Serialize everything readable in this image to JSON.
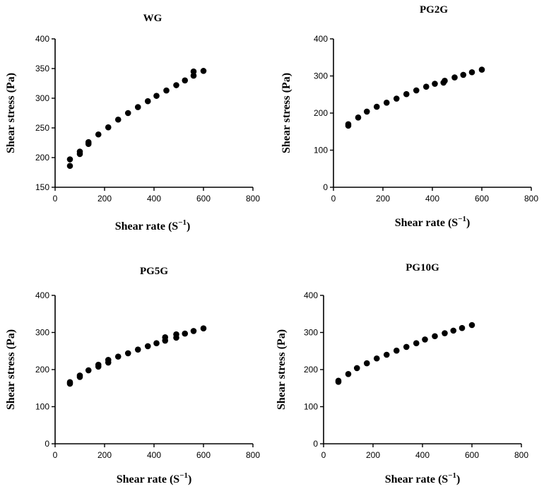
{
  "chart_data": [
    {
      "type": "scatter",
      "title": "WG",
      "xlabel": "Shear rate",
      "xlabel_unit_base": "S",
      "xlabel_unit_exp": "−1",
      "ylabel": "Shear stress (Pa)",
      "xlim": [
        0,
        800
      ],
      "ylim": [
        150,
        400
      ],
      "xticks": [
        0,
        200,
        400,
        600,
        800
      ],
      "yticks": [
        150,
        200,
        250,
        300,
        350,
        400
      ],
      "x": [
        60,
        60,
        100,
        100,
        135,
        135,
        175,
        215,
        255,
        295,
        335,
        375,
        410,
        450,
        490,
        525,
        560,
        560,
        600
      ],
      "y": [
        186,
        197,
        206,
        210,
        223,
        226,
        239,
        251,
        264,
        275,
        285,
        295,
        304,
        313,
        322,
        330,
        338,
        345,
        346
      ]
    },
    {
      "type": "scatter",
      "title": "PG2G",
      "xlabel": "Shear rate",
      "xlabel_unit_base": "S",
      "xlabel_unit_exp": "−1",
      "ylabel": "Shear stress (Pa)",
      "xlim": [
        0,
        800
      ],
      "ylim": [
        0,
        400
      ],
      "xticks": [
        0,
        200,
        400,
        600,
        800
      ],
      "yticks": [
        0,
        100,
        200,
        300,
        400
      ],
      "x": [
        60,
        60,
        100,
        135,
        175,
        215,
        255,
        295,
        335,
        375,
        410,
        445,
        450,
        490,
        525,
        560,
        600
      ],
      "y": [
        166,
        170,
        188,
        204,
        217,
        228,
        239,
        251,
        261,
        271,
        279,
        282,
        287,
        296,
        303,
        310,
        317
      ]
    },
    {
      "type": "scatter",
      "title": "PG5G",
      "xlabel": "Shear rate",
      "xlabel_unit_base": "S",
      "xlabel_unit_exp": "−1",
      "ylabel": "Shear stress (Pa)",
      "xlim": [
        0,
        800
      ],
      "ylim": [
        0,
        400
      ],
      "xticks": [
        0,
        200,
        400,
        600,
        800
      ],
      "yticks": [
        0,
        100,
        200,
        300,
        400
      ],
      "x": [
        60,
        60,
        100,
        100,
        135,
        175,
        175,
        215,
        215,
        255,
        295,
        335,
        375,
        410,
        445,
        445,
        490,
        490,
        525,
        560,
        600
      ],
      "y": [
        162,
        166,
        180,
        184,
        198,
        208,
        213,
        219,
        226,
        235,
        244,
        254,
        263,
        271,
        278,
        287,
        286,
        295,
        297,
        304,
        311
      ]
    },
    {
      "type": "scatter",
      "title": "PG10G",
      "xlabel": "Shear rate",
      "xlabel_unit_base": "S",
      "xlabel_unit_exp": "−1",
      "ylabel": "Shear stress (Pa)",
      "xlim": [
        0,
        800
      ],
      "ylim": [
        0,
        400
      ],
      "xticks": [
        0,
        200,
        400,
        600,
        800
      ],
      "yticks": [
        0,
        100,
        200,
        300,
        400
      ],
      "x": [
        60,
        60,
        100,
        135,
        175,
        215,
        255,
        295,
        335,
        375,
        410,
        450,
        490,
        525,
        560,
        600
      ],
      "y": [
        167,
        170,
        188,
        204,
        217,
        230,
        240,
        251,
        261,
        271,
        281,
        290,
        298,
        305,
        312,
        320
      ]
    }
  ]
}
